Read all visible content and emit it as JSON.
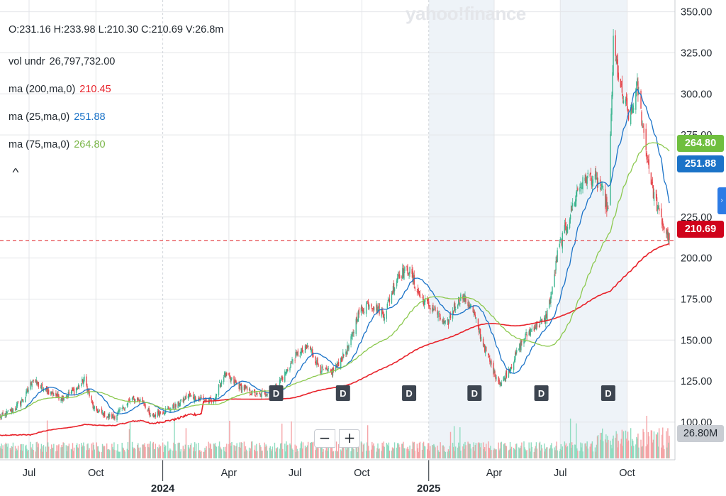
{
  "brand": {
    "watermark": "yahoo!finance"
  },
  "legend": {
    "ohlc": "O:231.16  H:233.98  L:210.30  C:210.69  V:26.8m",
    "vol_label": "vol undr",
    "vol_value": "26,797,732.00",
    "ma200_label": "ma (200,ma,0)",
    "ma200_value": "210.45",
    "ma25_label": "ma (25,ma,0)",
    "ma25_value": "251.88",
    "ma75_label": "ma (75,ma,0)",
    "ma75_value": "264.80"
  },
  "colors": {
    "up": "#3bb58f",
    "down": "#e5484d",
    "ma200": "#e8222a",
    "ma25": "#1b73c8",
    "ma75": "#8cc94f",
    "grid": "#e3e5e8",
    "vol_up": "#8fdcc0",
    "vol_down": "#f5a3a6",
    "shade": "#eef3f8",
    "close_line": "#e5484d"
  },
  "controls": {
    "collapse_icon": "^",
    "zoom_out": "−",
    "zoom_in": "+",
    "side_toggle_icon": "›"
  },
  "badges": {
    "ma75": "264.80",
    "ma25": "251.88",
    "close": "210.69",
    "volume": "26.80M"
  },
  "chart_data": {
    "type": "candlestick",
    "y_axis": {
      "min": 87,
      "max": 352,
      "ticks": [
        "350.00",
        "325.00",
        "300.00",
        "275.00",
        "225.00",
        "200.00",
        "175.00",
        "150.00",
        "125.00",
        "100.00"
      ]
    },
    "x_axis": {
      "start": "2023-05-22",
      "end": "2025-11-28",
      "months": [
        {
          "label": "Jul",
          "date": "2023-07-01"
        },
        {
          "label": "Oct",
          "date": "2023-10-01"
        },
        {
          "label": "Apr",
          "date": "2024-04-01"
        },
        {
          "label": "Jul",
          "date": "2024-07-01"
        },
        {
          "label": "Oct",
          "date": "2024-10-01"
        },
        {
          "label": "Apr",
          "date": "2025-04-01"
        },
        {
          "label": "Jul",
          "date": "2025-07-01"
        },
        {
          "label": "Oct",
          "date": "2025-10-01"
        }
      ],
      "years": [
        {
          "label": "2024",
          "date": "2024-01-01"
        },
        {
          "label": "2025",
          "date": "2025-01-01"
        }
      ]
    },
    "shaded_ranges": [
      [
        "2025-01-01",
        "2025-04-01"
      ],
      [
        "2025-07-01",
        "2025-10-01"
      ]
    ],
    "dividend_markers": {
      "label": "D",
      "dates": [
        "2024-06-05",
        "2024-09-05",
        "2024-12-05",
        "2025-03-05",
        "2025-06-05",
        "2025-09-05"
      ]
    },
    "price_keyframes": [
      [
        "2023-05-22",
        103
      ],
      [
        "2023-06-10",
        108
      ],
      [
        "2023-06-25",
        115
      ],
      [
        "2023-07-06",
        126
      ],
      [
        "2023-07-20",
        120
      ],
      [
        "2023-08-15",
        115
      ],
      [
        "2023-09-01",
        119
      ],
      [
        "2023-09-15",
        126
      ],
      [
        "2023-09-28",
        108
      ],
      [
        "2023-10-15",
        104
      ],
      [
        "2023-10-25",
        103
      ],
      [
        "2023-11-05",
        108
      ],
      [
        "2023-11-20",
        114
      ],
      [
        "2023-12-05",
        113
      ],
      [
        "2023-12-15",
        103
      ],
      [
        "2023-12-28",
        106
      ],
      [
        "2024-01-20",
        110
      ],
      [
        "2024-02-05",
        116
      ],
      [
        "2024-02-25",
        114
      ],
      [
        "2024-03-10",
        112
      ],
      [
        "2024-03-25",
        129
      ],
      [
        "2024-04-15",
        122
      ],
      [
        "2024-05-10",
        116
      ],
      [
        "2024-06-01",
        119
      ],
      [
        "2024-06-15",
        128
      ],
      [
        "2024-07-01",
        140
      ],
      [
        "2024-07-20",
        146
      ],
      [
        "2024-08-05",
        132
      ],
      [
        "2024-08-20",
        130
      ],
      [
        "2024-09-05",
        140
      ],
      [
        "2024-09-15",
        148
      ],
      [
        "2024-09-25",
        165
      ],
      [
        "2024-10-10",
        173
      ],
      [
        "2024-11-01",
        166
      ],
      [
        "2024-11-20",
        190
      ],
      [
        "2024-12-05",
        193
      ],
      [
        "2024-12-20",
        176
      ],
      [
        "2025-01-10",
        168
      ],
      [
        "2025-01-25",
        158
      ],
      [
        "2025-02-05",
        170
      ],
      [
        "2025-02-15",
        177
      ],
      [
        "2025-03-01",
        170
      ],
      [
        "2025-03-15",
        150
      ],
      [
        "2025-04-01",
        130
      ],
      [
        "2025-04-10",
        123
      ],
      [
        "2025-04-25",
        135
      ],
      [
        "2025-05-10",
        150
      ],
      [
        "2025-05-25",
        158
      ],
      [
        "2025-06-10",
        162
      ],
      [
        "2025-06-20",
        180
      ],
      [
        "2025-06-28",
        205
      ],
      [
        "2025-07-10",
        220
      ],
      [
        "2025-07-25",
        242
      ],
      [
        "2025-08-10",
        250
      ],
      [
        "2025-08-25",
        244
      ],
      [
        "2025-09-05",
        228
      ],
      [
        "2025-09-12",
        330
      ],
      [
        "2025-09-22",
        302
      ],
      [
        "2025-10-05",
        285
      ],
      [
        "2025-10-15",
        305
      ],
      [
        "2025-10-25",
        272
      ],
      [
        "2025-11-05",
        242
      ],
      [
        "2025-11-15",
        225
      ],
      [
        "2025-11-28",
        211
      ]
    ],
    "last_close": 210.69,
    "moving_averages": [
      {
        "name": "ma (200,ma,0)",
        "period": 200,
        "value": 210.45
      },
      {
        "name": "ma (25,ma,0)",
        "period": 25,
        "value": 251.88
      },
      {
        "name": "ma (75,ma,0)",
        "period": 75,
        "value": 264.8
      }
    ],
    "volume": {
      "last": 26797732,
      "max": 40000000
    }
  }
}
